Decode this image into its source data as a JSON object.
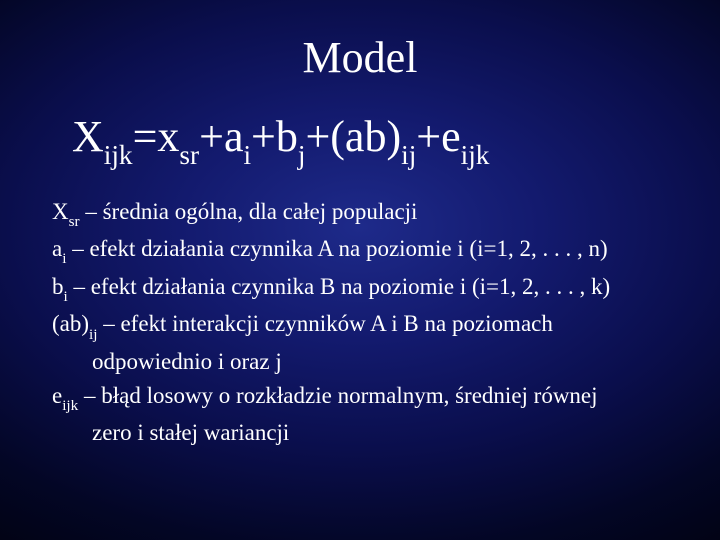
{
  "background": {
    "gradient_center": "#1e2a8a",
    "gradient_mid1": "#131a6e",
    "gradient_mid2": "#0a0e4c",
    "gradient_outer1": "#030625",
    "gradient_outer2": "#010210"
  },
  "text_color": "#ffffff",
  "font_family": "Georgia, Times New Roman, serif",
  "title": {
    "text": "Model",
    "fontsize": 44
  },
  "equation": {
    "fontsize": 44,
    "lhs_base": "X",
    "lhs_sub": "ijk",
    "eq": "=",
    "t1_base": "x",
    "t1_sub": "sr",
    "plus": "+",
    "t2_base": "a",
    "t2_sub": "i",
    "t3_base": "b",
    "t3_sub": "j",
    "t4_base": "(ab)",
    "t4_sub": "ij",
    "t5_base": "e",
    "t5_sub": "ijk"
  },
  "definitions": {
    "fontsize": 23,
    "xsr": {
      "sym_base": "X",
      "sym_sub": "sr",
      "dash": " – ",
      "text": "średnia ogólna, dla całej populacji"
    },
    "ai": {
      "sym_base": "a",
      "sym_sub": "i",
      "dash": " – ",
      "text": "efekt działania czynnika A na poziomie i (i=1, 2, . . . , n)"
    },
    "bi": {
      "sym_base": "b",
      "sym_sub": "i",
      "dash": " – ",
      "text": "efekt działania czynnika B na poziomie i (i=1, 2, . . . , k)"
    },
    "abij": {
      "sym_base": "(ab)",
      "sym_sub": "ij",
      "dash": " – ",
      "text1": "efekt interakcji czynników A i B na poziomach",
      "text2": "odpowiednio i oraz j"
    },
    "eijk": {
      "sym_base": "e",
      "sym_sub": "ijk",
      "dash": " – ",
      "text1": "błąd losowy o rozkładzie normalnym, średniej równej",
      "text2": "zero i stałej wariancji"
    }
  }
}
